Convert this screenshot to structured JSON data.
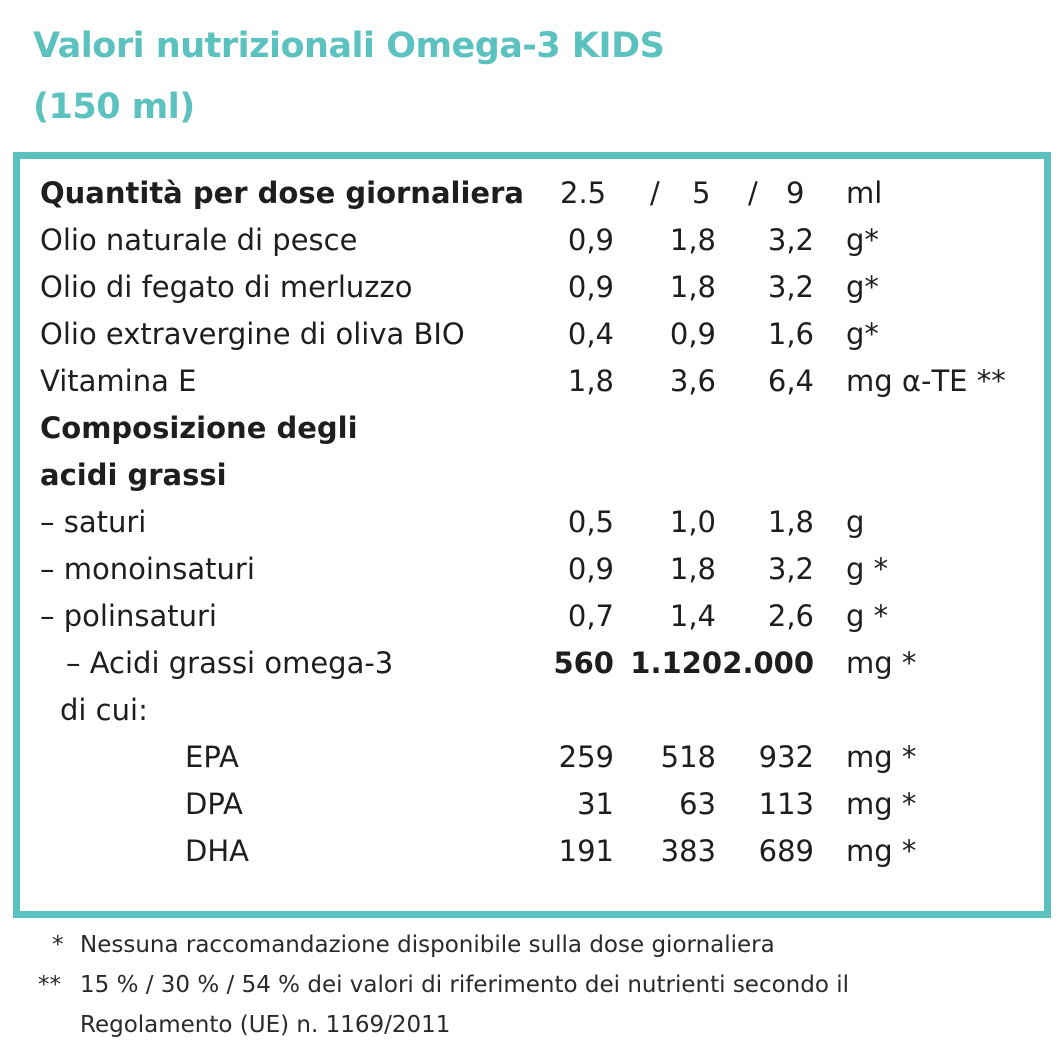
{
  "title": {
    "line1": "Valori nutrizionali Omega-3 KIDS",
    "line2": "(150 ml)"
  },
  "table": {
    "header": {
      "label": "Quantità per dose giornaliera",
      "dose1": "2.5",
      "sep1": "/",
      "dose2": "5",
      "sep2": "/",
      "dose3": "9",
      "unit": "ml"
    },
    "rows": [
      {
        "label": "Olio naturale di pesce",
        "v1": "0,9",
        "v2": "1,8",
        "v3": "3,2",
        "unit": "g*"
      },
      {
        "label": "Olio di fegato di merluzzo",
        "v1": "0,9",
        "v2": "1,8",
        "v3": "3,2",
        "unit": "g*"
      },
      {
        "label": "Olio extravergine di oliva BIO",
        "v1": "0,4",
        "v2": "0,9",
        "v3": "1,6",
        "unit": "g*"
      },
      {
        "label": "Vitamina E",
        "v1": "1,8",
        "v2": "3,6",
        "v3": "6,4",
        "unit": "mg α-TE **"
      }
    ],
    "section": {
      "line1": "Composizione degli",
      "line2": "acidi grassi"
    },
    "fatty_rows": [
      {
        "label": "– saturi",
        "v1": "0,5",
        "v2": "1,0",
        "v3": "1,8",
        "unit": "g"
      },
      {
        "label": "– monoinsaturi",
        "v1": "0,9",
        "v2": "1,8",
        "v3": "3,2",
        "unit": "g *"
      },
      {
        "label": "–  polinsaturi",
        "v1": "0,7",
        "v2": "1,4",
        "v3": "2,6",
        "unit": "g *"
      },
      {
        "label": "– Acidi grassi omega-3",
        "v1": "560",
        "v2": "1.120",
        "v3": "2.000",
        "unit": "mg *"
      }
    ],
    "di_cui": "di cui:",
    "sub_rows": [
      {
        "label": "EPA",
        "v1": "259",
        "v2": "518",
        "v3": "932",
        "unit": "mg *"
      },
      {
        "label": "DPA",
        "v1": "31",
        "v2": "63",
        "v3": "113",
        "unit": "mg *"
      },
      {
        "label": "DHA",
        "v1": "191",
        "v2": "383",
        "v3": "689",
        "unit": "mg *"
      }
    ]
  },
  "footnotes": {
    "note1_mark": "*",
    "note1_text": "Nessuna raccomandazione disponibile sulla dose giornaliera",
    "note2_mark": "**",
    "note2_text": "15 % / 30 % / 54 % dei valori di riferimento dei nutrienti secondo il",
    "note2_cont": "Regolamento (UE) n. 1169/2011"
  },
  "colors": {
    "accent": "#5cc2c0",
    "text": "#1e1e1e"
  }
}
